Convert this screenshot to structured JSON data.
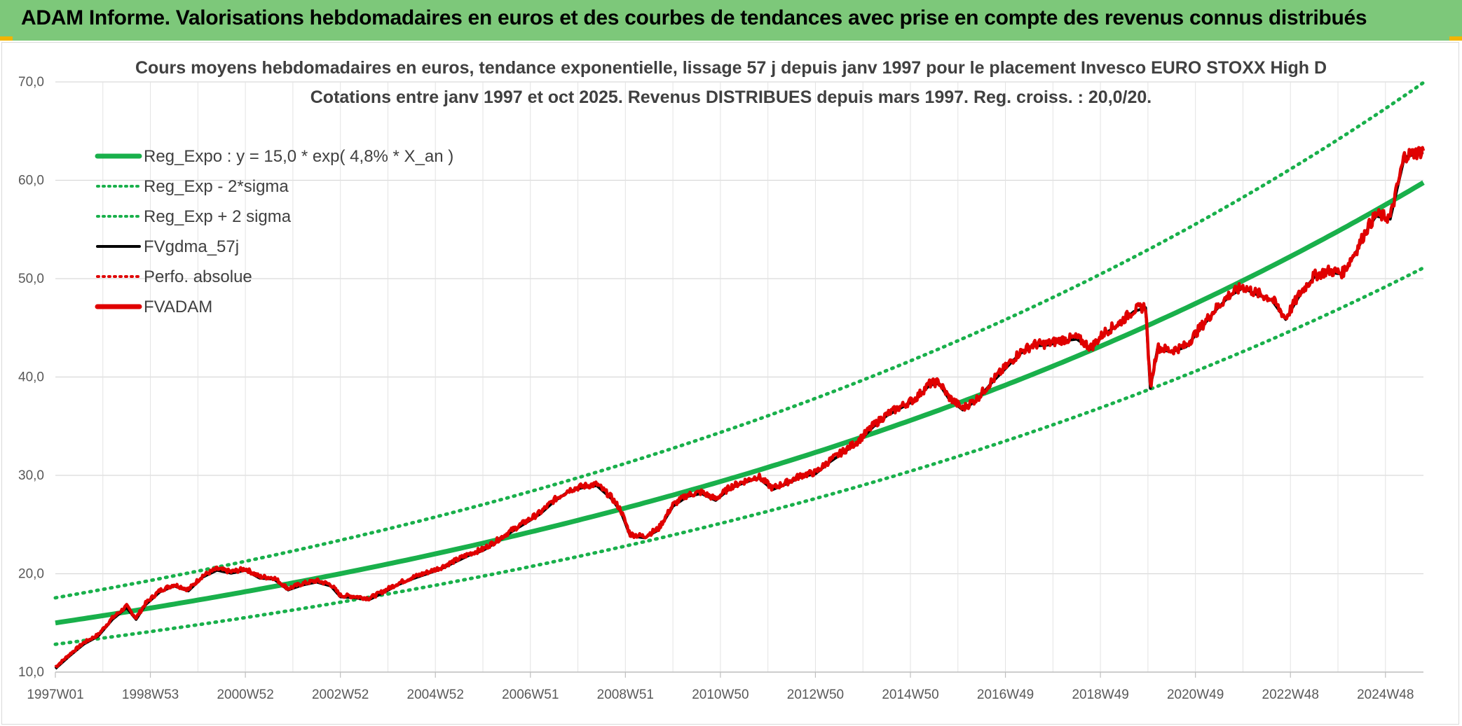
{
  "header": {
    "title": "ADAM Informe. Valorisations hebdomadaires en euros et des courbes de tendances avec prise en compte des revenus connus distribués",
    "background": "#7dc87a",
    "accent": "#f2b400"
  },
  "chart_data": {
    "type": "line",
    "title_lines": [
      "Cours moyens hebdomadaires en euros, tendance exponentielle, lissage 57 j depuis janv 1997 pour le placement Invesco EURO STOXX High D",
      "Cotations entre janv 1997 et oct 2025. Revenus DISTRIBUES depuis mars 1997. Reg. croiss. : 20,0/20."
    ],
    "ylim": [
      10,
      70
    ],
    "y_ticks": [
      "10,0",
      "20,0",
      "30,0",
      "40,0",
      "50,0",
      "60,0",
      "70,0"
    ],
    "y_tick_values": [
      10,
      20,
      30,
      40,
      50,
      60,
      70
    ],
    "x_ticks": [
      "1997W01",
      "1998W53",
      "2000W52",
      "2002W52",
      "2004W52",
      "2006W51",
      "2008W51",
      "2010W50",
      "2012W50",
      "2014W50",
      "2016W49",
      "2018W49",
      "2020W49",
      "2022W48",
      "2024W48"
    ],
    "x_tick_years": [
      1997.0,
      1999.0,
      2001.0,
      2003.0,
      2005.0,
      2007.0,
      2009.0,
      2011.0,
      2013.0,
      2015.0,
      2017.0,
      2019.0,
      2021.0,
      2023.0,
      2025.0
    ],
    "x_range_years": [
      1997.0,
      2025.8
    ],
    "grid": true,
    "legend_position": "top-left",
    "regression": {
      "a": 15.0,
      "rate": 0.048,
      "sigma_upper_factor": 1.17,
      "sigma_lower_factor": 0.855
    },
    "legend": [
      {
        "label": "Reg_Expo : y = 15,0 * exp( 4,8% *  X_an )",
        "color": "#19b04b",
        "style": "solid-thick"
      },
      {
        "label": "Reg_Exp - 2*sigma",
        "color": "#19b04b",
        "style": "dotted"
      },
      {
        "label": "Reg_Exp + 2 sigma",
        "color": "#19b04b",
        "style": "dotted"
      },
      {
        "label": "FVgdma_57j",
        "color": "#000000",
        "style": "solid"
      },
      {
        "label": "Perfo. absolue",
        "color": "#e00000",
        "style": "dotted"
      },
      {
        "label": "FVADAM",
        "color": "#e00000",
        "style": "solid-thick"
      }
    ],
    "series": [
      {
        "name": "FVADAM",
        "x": [
          1997.0,
          1997.3,
          1997.6,
          1997.9,
          1998.2,
          1998.5,
          1998.7,
          1998.9,
          1999.2,
          1999.5,
          1999.8,
          2000.1,
          2000.4,
          2000.7,
          2001.0,
          2001.3,
          2001.6,
          2001.9,
          2002.2,
          2002.5,
          2002.8,
          2003.0,
          2003.3,
          2003.6,
          2003.9,
          2004.2,
          2004.5,
          2004.8,
          2005.1,
          2005.4,
          2005.7,
          2006.0,
          2006.3,
          2006.6,
          2006.9,
          2007.2,
          2007.5,
          2007.8,
          2008.1,
          2008.4,
          2008.7,
          2008.9,
          2009.1,
          2009.4,
          2009.7,
          2010.0,
          2010.3,
          2010.6,
          2010.9,
          2011.2,
          2011.5,
          2011.8,
          2012.1,
          2012.4,
          2012.7,
          2013.0,
          2013.3,
          2013.6,
          2013.9,
          2014.2,
          2014.5,
          2014.8,
          2015.1,
          2015.4,
          2015.6,
          2015.8,
          2016.1,
          2016.4,
          2016.7,
          2017.0,
          2017.3,
          2017.6,
          2017.9,
          2018.2,
          2018.5,
          2018.8,
          2019.1,
          2019.4,
          2019.7,
          2019.95,
          2020.05,
          2020.2,
          2020.5,
          2020.8,
          2021.1,
          2021.4,
          2021.7,
          2022.0,
          2022.3,
          2022.6,
          2022.9,
          2023.2,
          2023.5,
          2023.8,
          2024.1,
          2024.4,
          2024.6,
          2024.8,
          2025.1,
          2025.4,
          2025.8
        ],
        "y": [
          10.5,
          11.8,
          13.0,
          13.8,
          15.5,
          16.7,
          15.5,
          17.0,
          18.3,
          18.9,
          18.4,
          19.8,
          20.5,
          20.2,
          20.5,
          19.7,
          19.6,
          18.5,
          19.0,
          19.3,
          18.9,
          17.8,
          17.7,
          17.5,
          18.2,
          19.0,
          19.6,
          20.1,
          20.6,
          21.3,
          22.0,
          22.5,
          23.4,
          24.4,
          25.3,
          26.2,
          27.5,
          28.5,
          28.9,
          29.1,
          27.8,
          26.5,
          24.0,
          23.8,
          24.6,
          27.0,
          28.0,
          28.3,
          27.6,
          28.8,
          29.4,
          29.9,
          28.7,
          29.3,
          30.0,
          30.3,
          31.5,
          32.5,
          33.5,
          35.0,
          36.2,
          37.0,
          37.8,
          39.3,
          39.5,
          38.0,
          36.8,
          37.8,
          39.5,
          41.0,
          42.5,
          43.3,
          43.4,
          43.8,
          44.0,
          43.0,
          44.6,
          45.5,
          46.8,
          47.2,
          39.0,
          43.0,
          42.7,
          43.2,
          45.0,
          46.8,
          48.3,
          49.2,
          48.5,
          48.0,
          46.0,
          48.5,
          50.3,
          50.8,
          50.6,
          53.0,
          55.0,
          56.5,
          56.2,
          62.5,
          63.0
        ]
      }
    ]
  }
}
